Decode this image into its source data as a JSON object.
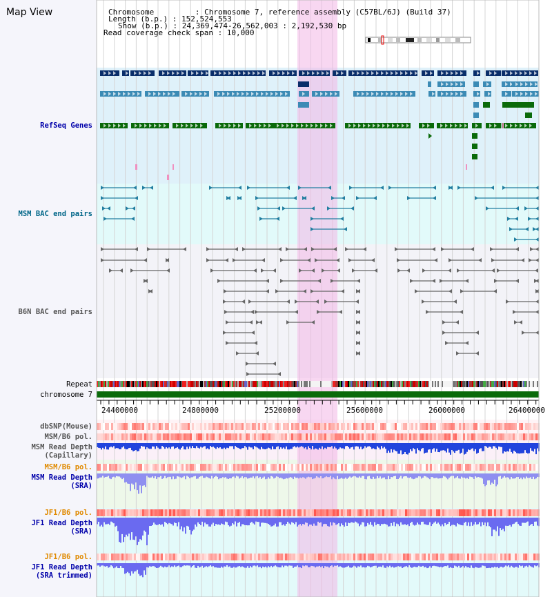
{
  "page_title": "Map View",
  "info": {
    "chromosome": "Chromosome         : Chromosome 7, reference assembly (C57BL/6J) (Build 37)",
    "length": "Length (b.p.) : 152,524,553",
    "show": "Show (b.p.) : 24,369,474-26,562,003 : 2,192,530 bp",
    "coverage": "Read coverage check span : 10,000"
  },
  "tracks": {
    "refseq": "RefSeq Genes",
    "msm_bac": "MSM BAC end pairs",
    "b6n_bac": "B6N BAC end pairs",
    "repeat": "Repeat",
    "chromosome": "chromosome 7",
    "dbsnp": "dbSNP(Mouse)",
    "msm_b6_pol_1": "MSM/B6 pol.",
    "msm_depth_cap_1": "MSM Read Depth",
    "msm_depth_cap_2": "(Capillary)",
    "msm_b6_pol_2": "MSM/B6 pol.",
    "msm_depth_sra_1": "MSM Read Depth",
    "msm_depth_sra_2": "(SRA)",
    "jf1_b6_pol_1": "JF1/B6 pol.",
    "jf1_depth_sra_1": "JF1 Read Depth",
    "jf1_depth_sra_2": "(SRA)",
    "jf1_b6_pol_2": "JF1/B6 pol.",
    "jf1_depth_trim_1": "JF1 Read Depth",
    "jf1_depth_trim_2": "(SRA trimmed)"
  },
  "axis_ticks": [
    "24400000",
    "24800000",
    "25200000",
    "25600000",
    "26000000",
    "26400000"
  ],
  "colors": {
    "refseq_label": "#0000aa",
    "msm_label": "#006688",
    "b6n_label": "#555555",
    "pol_label": "#e08a00",
    "depth_label": "#0000aa",
    "highlight": "#f3b6e6",
    "gene_dark": "#0a2e6a",
    "gene_mid": "#3c8bb5",
    "gene_green": "#0a6a0a",
    "chromosome_bar": "#0a6a0a"
  }
}
